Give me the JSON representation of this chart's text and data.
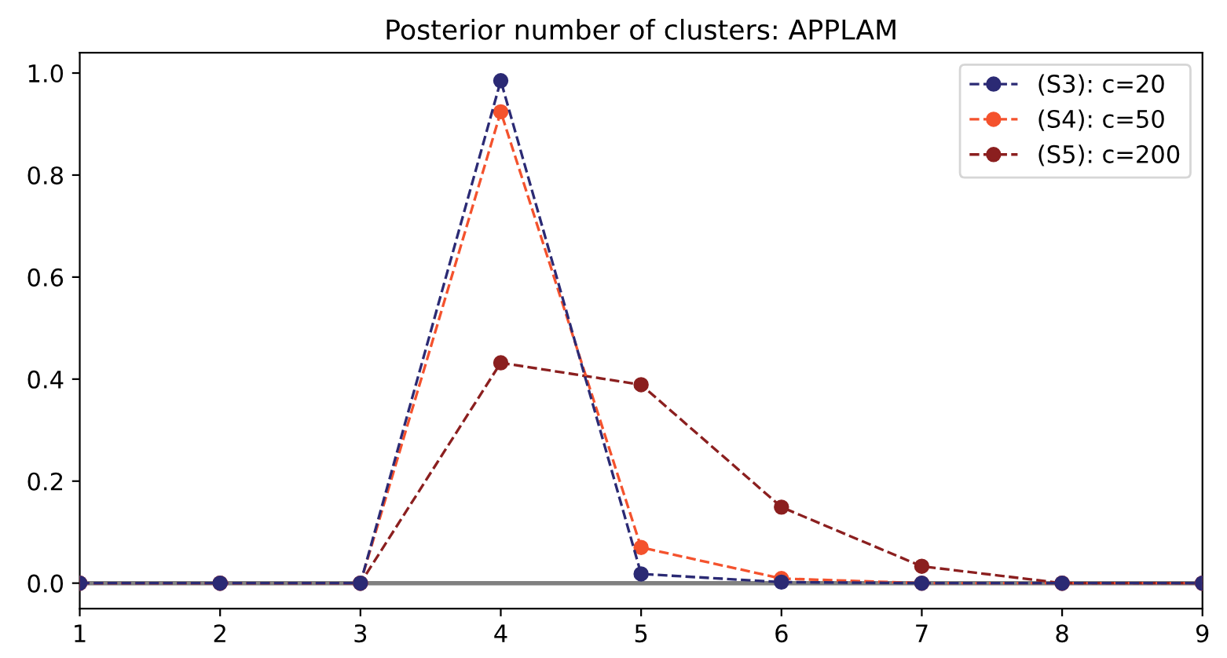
{
  "chart_data": {
    "type": "line",
    "title": "Posterior number of clusters: APPLAM",
    "x": [
      1,
      2,
      3,
      4,
      5,
      6,
      7,
      8,
      9
    ],
    "series": [
      {
        "name": "(S3): c=20",
        "color": "#2b2a74",
        "values": [
          0,
          0,
          0,
          0.985,
          0.018,
          0.002,
          0,
          0,
          0
        ]
      },
      {
        "name": "(S4): c=50",
        "color": "#f4522d",
        "values": [
          0,
          0,
          0,
          0.924,
          0.07,
          0.009,
          0,
          0,
          0
        ]
      },
      {
        "name": "(S5): c=200",
        "color": "#8b1f1f",
        "values": [
          0,
          0,
          0,
          0.432,
          0.389,
          0.149,
          0.033,
          0,
          0
        ]
      }
    ],
    "xlim": [
      1,
      9
    ],
    "xticks": [
      1,
      2,
      3,
      4,
      5,
      6,
      7,
      8,
      9
    ],
    "ylim": [
      -0.05,
      1.04
    ],
    "yticks": [
      {
        "value": 0,
        "label": "0.0"
      },
      {
        "value": 0.2,
        "label": "0.2"
      },
      {
        "value": 0.4,
        "label": "0.4"
      },
      {
        "value": 0.6,
        "label": "0.6"
      },
      {
        "value": 0.8,
        "label": "0.8"
      },
      {
        "value": 1,
        "label": "1.0"
      }
    ],
    "ref_lines": [
      {
        "axis": "y",
        "value": 0,
        "color": "#808080",
        "line_style": "solid"
      }
    ],
    "marker": "circle",
    "line_style": "dashed",
    "grid": false,
    "legend": "top right"
  }
}
